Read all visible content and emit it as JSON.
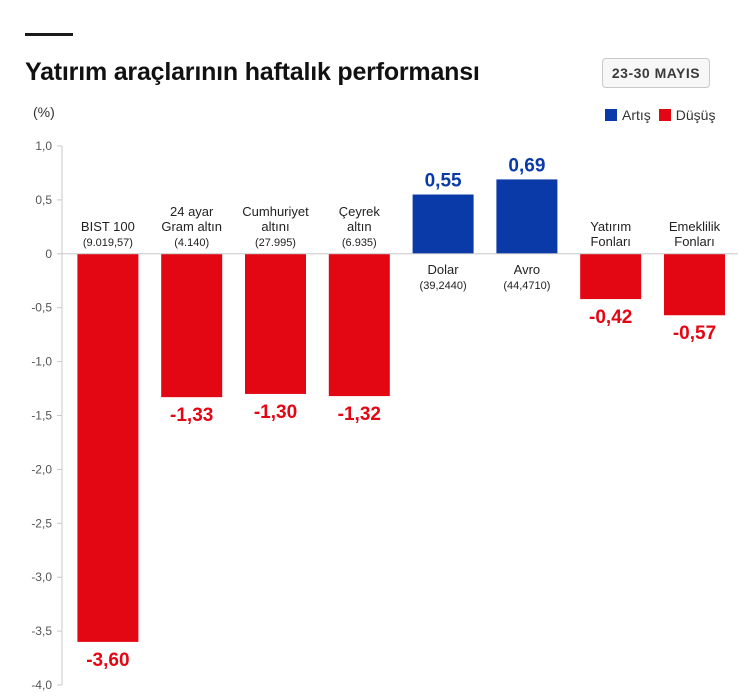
{
  "header": {
    "title": "Yatırım araçlarının haftalık performansı",
    "date_range": "23-30 MAYIS"
  },
  "chart_data": {
    "type": "bar",
    "ylabel": "(%)",
    "ylim": [
      -4.0,
      1.0
    ],
    "yticks": [
      "1,0",
      "0,5",
      "0",
      "-0,5",
      "-1,0",
      "-1,5",
      "-2,0",
      "-2,5",
      "-3,0",
      "-3,5",
      "-4,0"
    ],
    "ytick_values": [
      1.0,
      0.5,
      0,
      -0.5,
      -1.0,
      -1.5,
      -2.0,
      -2.5,
      -3.0,
      -3.5,
      -4.0
    ],
    "categories": [
      {
        "name": [
          "BIST 100"
        ],
        "price": "(9.019,57)"
      },
      {
        "name": [
          "24 ayar",
          "Gram altın"
        ],
        "price": "(4.140)"
      },
      {
        "name": [
          "Cumhuriyet",
          "altını"
        ],
        "price": "(27.995)"
      },
      {
        "name": [
          "Çeyrek",
          "altın"
        ],
        "price": "(6.935)"
      },
      {
        "name": [
          "Dolar"
        ],
        "price": "(39,2440)"
      },
      {
        "name": [
          "Avro"
        ],
        "price": "(44,4710)"
      },
      {
        "name": [
          "Yatırım",
          "Fonları"
        ],
        "price": ""
      },
      {
        "name": [
          "Emeklilik",
          "Fonları"
        ],
        "price": ""
      }
    ],
    "values": [
      -3.6,
      -1.33,
      -1.3,
      -1.32,
      0.55,
      0.69,
      -0.42,
      -0.57
    ],
    "value_labels": [
      "-3,60",
      "-1,33",
      "-1,30",
      "-1,32",
      "0,55",
      "0,69",
      "-0,42",
      "-0,57"
    ],
    "legend": {
      "position": "top-right",
      "items": [
        {
          "label": "Artış",
          "color": "#0a3aa8"
        },
        {
          "label": "Düşüş",
          "color": "#e30613"
        }
      ]
    },
    "colors": {
      "increase": "#0a3aa8",
      "decrease": "#e30613",
      "axis": "#c8c8c8",
      "tick_text": "#555555"
    }
  }
}
